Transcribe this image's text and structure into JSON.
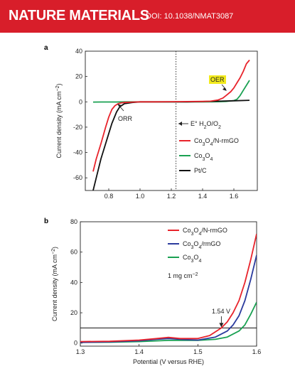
{
  "header": {
    "journal": "NATURE MATERIALS",
    "doi": "DOI: 10.1038/NMAT3087"
  },
  "chart_data": [
    {
      "panel": "a",
      "type": "line",
      "xlabel": "Potential (V versus RHE)",
      "ylabel": "Current density (mA cm⁻²)",
      "xlim": [
        0.65,
        1.75
      ],
      "ylim": [
        -70,
        40
      ],
      "xticks": [
        0.8,
        1.0,
        1.2,
        1.4,
        1.6
      ],
      "xtick_labels": [
        "0.8",
        "1.0",
        "1.2",
        "1.4",
        "1.6"
      ],
      "yticks": [
        -60,
        -40,
        -20,
        0,
        20,
        40
      ],
      "ytick_labels": [
        "-60",
        "-40",
        "-20",
        "0",
        "20",
        "40"
      ],
      "vline": {
        "x": 1.23,
        "style": "dotted",
        "label": "E° H₂O/O₂"
      },
      "annotations": [
        {
          "text": "ORR",
          "x": 0.8,
          "y": -8
        },
        {
          "text": "OER",
          "x": 1.52,
          "y": 12,
          "highlight": "#f2ea1d"
        }
      ],
      "legend_position": "right",
      "series": [
        {
          "name": "Co₃O₄/N-rmGO",
          "color": "#e8232b",
          "x": [
            0.7,
            0.72,
            0.75,
            0.78,
            0.8,
            0.82,
            0.84,
            0.86,
            0.88,
            0.9,
            0.95,
            1.0,
            1.1,
            1.2,
            1.3,
            1.4,
            1.45,
            1.5,
            1.53,
            1.55,
            1.58,
            1.6,
            1.62,
            1.64,
            1.66,
            1.68,
            1.7
          ],
          "y": [
            -55,
            -45,
            -33,
            -20,
            -12,
            -6,
            -3,
            -1.5,
            -0.8,
            -0.5,
            -0.2,
            0,
            0,
            0.1,
            0.2,
            0.3,
            0.5,
            1.5,
            3,
            5,
            8,
            11,
            15,
            19,
            24,
            30,
            33
          ]
        },
        {
          "name": "Co₃O₄",
          "color": "#1aa152",
          "x": [
            0.7,
            0.75,
            0.8,
            0.85,
            0.9,
            1.0,
            1.2,
            1.4,
            1.5,
            1.55,
            1.6,
            1.62,
            1.64,
            1.66,
            1.68,
            1.7
          ],
          "y": [
            -0.2,
            -0.1,
            -0.1,
            -0.1,
            0,
            0,
            0,
            0,
            0.1,
            0.3,
            1,
            2,
            5,
            9,
            13,
            17
          ]
        },
        {
          "name": "Pt/C",
          "color": "#111111",
          "x": [
            0.7,
            0.72,
            0.75,
            0.78,
            0.8,
            0.82,
            0.85,
            0.87,
            0.9,
            0.95,
            1.0,
            1.1,
            1.2,
            1.3,
            1.4,
            1.5,
            1.6,
            1.7
          ],
          "y": [
            -70,
            -60,
            -45,
            -33,
            -25,
            -17,
            -8,
            -4,
            -1.5,
            -0.5,
            0,
            0,
            0,
            0,
            0.2,
            0.5,
            0.8,
            1.2
          ]
        }
      ]
    },
    {
      "panel": "b",
      "type": "line",
      "xlabel": "Potential (V versus RHE)",
      "ylabel": "Current density (mA cm⁻²)",
      "xlim": [
        1.3,
        1.6
      ],
      "ylim": [
        -2,
        80
      ],
      "xticks": [
        1.3,
        1.4,
        1.5,
        1.6
      ],
      "xtick_labels": [
        "1.3",
        "1.4",
        "1.5",
        "1.6"
      ],
      "yticks": [
        0,
        20,
        40,
        60,
        80
      ],
      "ytick_labels": [
        "0",
        "20",
        "40",
        "60",
        "80"
      ],
      "hline": {
        "y": 10
      },
      "annotations": [
        {
          "text": "1 mg cm⁻²",
          "x": 1.48,
          "y": 47
        },
        {
          "text": "1.54 V",
          "x": 1.54,
          "y": 20
        }
      ],
      "legend_position": "top-right",
      "series": [
        {
          "name": "Co₃O₄/N-rmGO",
          "color": "#e8232b",
          "x": [
            1.3,
            1.35,
            1.4,
            1.43,
            1.45,
            1.47,
            1.5,
            1.52,
            1.54,
            1.55,
            1.56,
            1.57,
            1.58,
            1.59,
            1.6
          ],
          "y": [
            1,
            1.2,
            2,
            3,
            3.8,
            3,
            3,
            5,
            10,
            14,
            20,
            28,
            40,
            55,
            72
          ]
        },
        {
          "name": "Co₃O₄/rmGO",
          "color": "#2b3b9e",
          "x": [
            1.3,
            1.35,
            1.4,
            1.43,
            1.45,
            1.47,
            1.5,
            1.53,
            1.55,
            1.56,
            1.57,
            1.58,
            1.59,
            1.6
          ],
          "y": [
            0.5,
            0.8,
            1.5,
            2.5,
            3,
            2.5,
            2,
            4,
            8,
            12,
            18,
            28,
            42,
            58
          ]
        },
        {
          "name": "Co₃O₄",
          "color": "#1aa152",
          "x": [
            1.3,
            1.35,
            1.4,
            1.45,
            1.5,
            1.53,
            1.55,
            1.57,
            1.58,
            1.59,
            1.6
          ],
          "y": [
            0.5,
            0.6,
            1,
            1.8,
            1.8,
            2.5,
            4,
            8,
            12,
            19,
            27
          ]
        }
      ]
    }
  ]
}
